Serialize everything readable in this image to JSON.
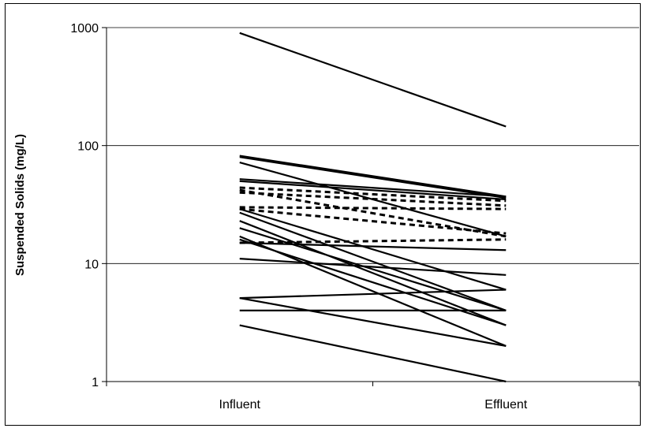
{
  "chart_data": {
    "type": "line",
    "title": "",
    "xlabel": "",
    "ylabel": "Suspended Solids (mg/L)",
    "categories": [
      "Influent",
      "Effluent"
    ],
    "y_scale": "log",
    "ylim": [
      1,
      1000
    ],
    "y_ticks": [
      1,
      10,
      100,
      1000
    ],
    "y_tick_labels": [
      "1",
      "10",
      "100",
      "1000"
    ],
    "grid": "horizontal major gridlines",
    "legend": "none",
    "line_color": "#000000",
    "series": [
      {
        "values": [
          900,
          145
        ],
        "style": "solid"
      },
      {
        "values": [
          82,
          37
        ],
        "style": "solid"
      },
      {
        "values": [
          80,
          36
        ],
        "style": "solid"
      },
      {
        "values": [
          72,
          17
        ],
        "style": "solid"
      },
      {
        "values": [
          52,
          37
        ],
        "style": "solid"
      },
      {
        "values": [
          50,
          35
        ],
        "style": "solid"
      },
      {
        "values": [
          29,
          6
        ],
        "style": "solid"
      },
      {
        "values": [
          27,
          4
        ],
        "style": "solid"
      },
      {
        "values": [
          23,
          3
        ],
        "style": "solid"
      },
      {
        "values": [
          20,
          4
        ],
        "style": "solid"
      },
      {
        "values": [
          17,
          2
        ],
        "style": "solid"
      },
      {
        "values": [
          16,
          3
        ],
        "style": "solid"
      },
      {
        "values": [
          15,
          13
        ],
        "style": "solid"
      },
      {
        "values": [
          11,
          8
        ],
        "style": "solid"
      },
      {
        "values": [
          5.1,
          6
        ],
        "style": "solid"
      },
      {
        "values": [
          5.1,
          2
        ],
        "style": "solid"
      },
      {
        "values": [
          4,
          4
        ],
        "style": "solid"
      },
      {
        "values": [
          3,
          1
        ],
        "style": "solid"
      },
      {
        "values": [
          44,
          34
        ],
        "style": "dashed"
      },
      {
        "values": [
          42,
          17
        ],
        "style": "dashed"
      },
      {
        "values": [
          40,
          31
        ],
        "style": "dashed"
      },
      {
        "values": [
          30,
          29
        ],
        "style": "dashed"
      },
      {
        "values": [
          29,
          18
        ],
        "style": "dashed"
      },
      {
        "values": [
          15,
          16
        ],
        "style": "dashed"
      }
    ]
  }
}
